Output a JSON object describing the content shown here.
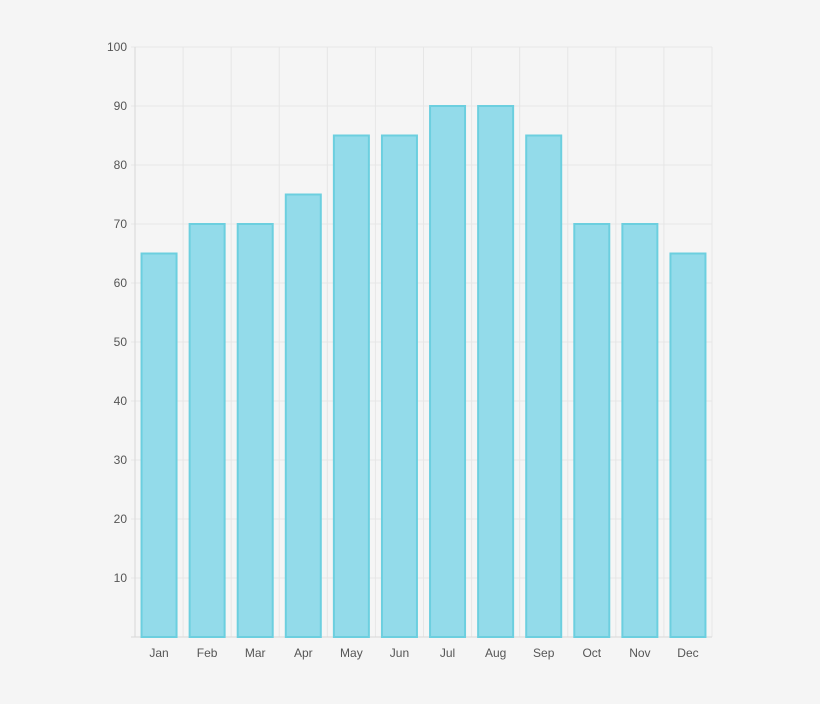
{
  "chart_data": {
    "type": "bar",
    "categories": [
      "Jan",
      "Feb",
      "Mar",
      "Apr",
      "May",
      "Jun",
      "Jul",
      "Aug",
      "Sep",
      "Oct",
      "Nov",
      "Dec"
    ],
    "values": [
      65,
      70,
      70,
      75,
      85,
      85,
      90,
      90,
      85,
      70,
      70,
      65
    ],
    "y_ticks": [
      10,
      20,
      30,
      40,
      50,
      60,
      70,
      80,
      90,
      100
    ],
    "ylim": [
      0,
      100
    ],
    "grid": true,
    "legend": "none",
    "colors": {
      "bar_fill": "#93dbea",
      "bar_stroke": "#6ccfdf",
      "grid": "#e6e6e6",
      "axis": "#d8d8d8",
      "background": "#f5f5f5"
    }
  }
}
